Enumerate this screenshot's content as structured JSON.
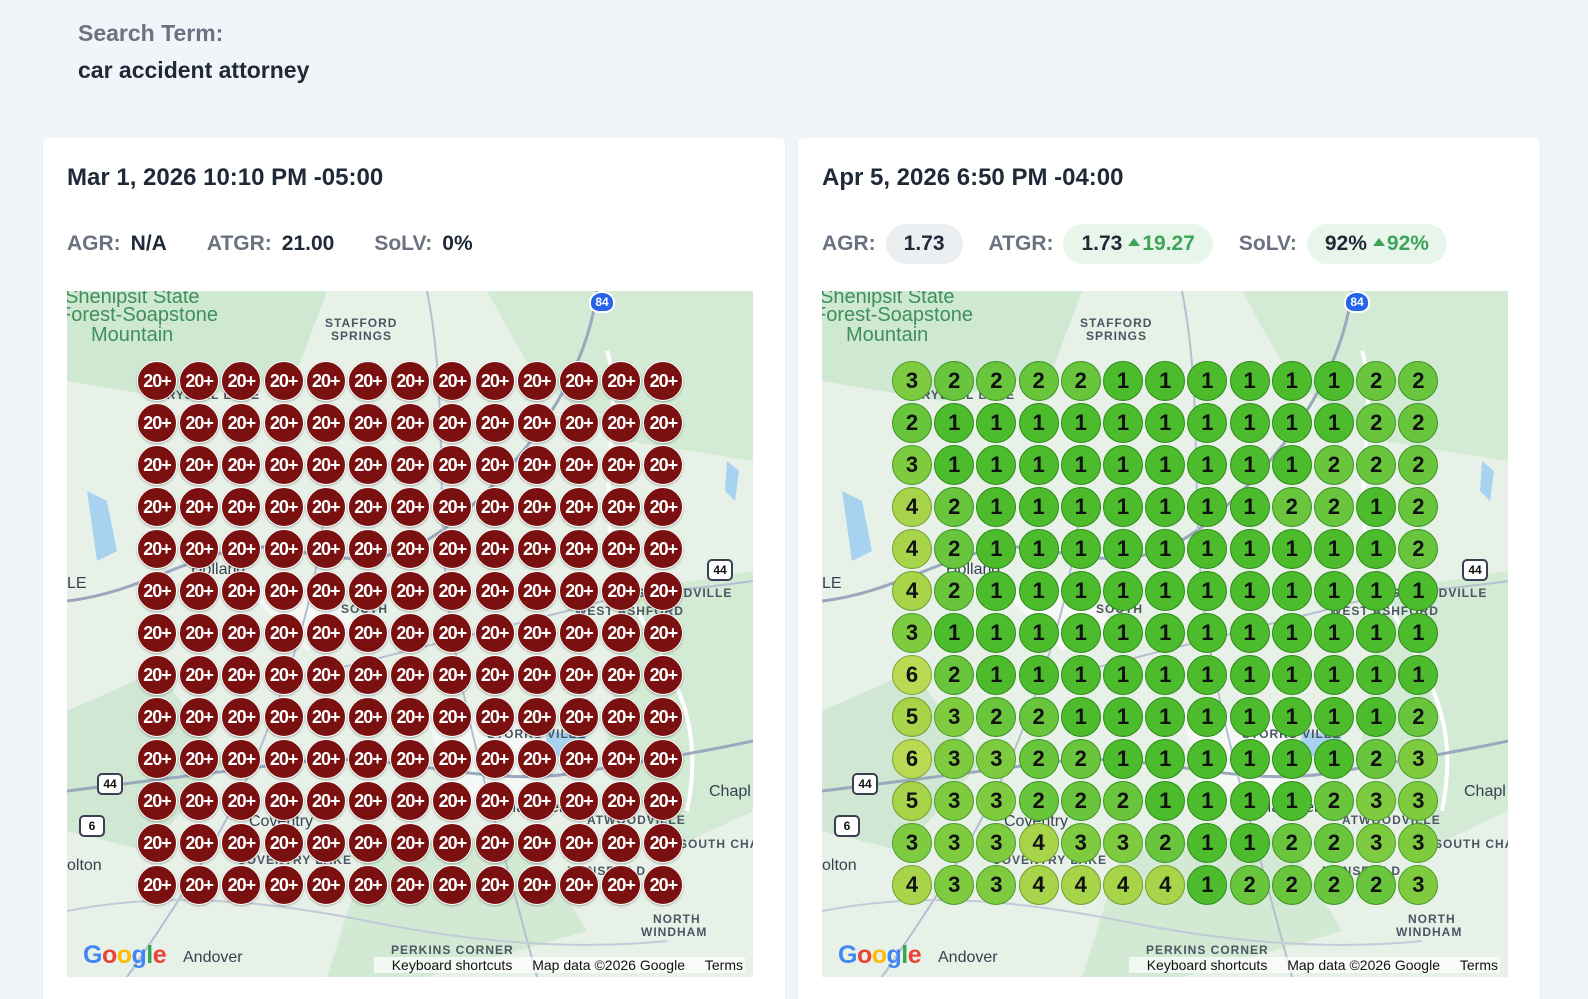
{
  "search": {
    "label": "Search Term:",
    "value": "car accident attorney"
  },
  "scans": [
    {
      "date": "Mar 1, 2026 10:10 PM -05:00",
      "agr_label": "AGR:",
      "agr_value": "N/A",
      "atgr_label": "ATGR:",
      "atgr_value": "21.00",
      "solv_label": "SoLV:",
      "solv_value": "0%",
      "grid": [
        [
          "20+",
          "20+",
          "20+",
          "20+",
          "20+",
          "20+",
          "20+",
          "20+",
          "20+",
          "20+",
          "20+",
          "20+",
          "20+"
        ],
        [
          "20+",
          "20+",
          "20+",
          "20+",
          "20+",
          "20+",
          "20+",
          "20+",
          "20+",
          "20+",
          "20+",
          "20+",
          "20+"
        ],
        [
          "20+",
          "20+",
          "20+",
          "20+",
          "20+",
          "20+",
          "20+",
          "20+",
          "20+",
          "20+",
          "20+",
          "20+",
          "20+"
        ],
        [
          "20+",
          "20+",
          "20+",
          "20+",
          "20+",
          "20+",
          "20+",
          "20+",
          "20+",
          "20+",
          "20+",
          "20+",
          "20+"
        ],
        [
          "20+",
          "20+",
          "20+",
          "20+",
          "20+",
          "20+",
          "20+",
          "20+",
          "20+",
          "20+",
          "20+",
          "20+",
          "20+"
        ],
        [
          "20+",
          "20+",
          "20+",
          "20+",
          "20+",
          "20+",
          "20+",
          "20+",
          "20+",
          "20+",
          "20+",
          "20+",
          "20+"
        ],
        [
          "20+",
          "20+",
          "20+",
          "20+",
          "20+",
          "20+",
          "20+",
          "20+",
          "20+",
          "20+",
          "20+",
          "20+",
          "20+"
        ],
        [
          "20+",
          "20+",
          "20+",
          "20+",
          "20+",
          "20+",
          "20+",
          "20+",
          "20+",
          "20+",
          "20+",
          "20+",
          "20+"
        ],
        [
          "20+",
          "20+",
          "20+",
          "20+",
          "20+",
          "20+",
          "20+",
          "20+",
          "20+",
          "20+",
          "20+",
          "20+",
          "20+"
        ],
        [
          "20+",
          "20+",
          "20+",
          "20+",
          "20+",
          "20+",
          "20+",
          "20+",
          "20+",
          "20+",
          "20+",
          "20+",
          "20+"
        ],
        [
          "20+",
          "20+",
          "20+",
          "20+",
          "20+",
          "20+",
          "20+",
          "20+",
          "20+",
          "20+",
          "20+",
          "20+",
          "20+"
        ],
        [
          "20+",
          "20+",
          "20+",
          "20+",
          "20+",
          "20+",
          "20+",
          "20+",
          "20+",
          "20+",
          "20+",
          "20+",
          "20+"
        ],
        [
          "20+",
          "20+",
          "20+",
          "20+",
          "20+",
          "20+",
          "20+",
          "20+",
          "20+",
          "20+",
          "20+",
          "20+",
          "20+"
        ]
      ]
    },
    {
      "date": "Apr 5, 2026 6:50 PM -04:00",
      "agr_label": "AGR:",
      "agr_value": "1.73",
      "atgr_label": "ATGR:",
      "atgr_value": "1.73",
      "atgr_delta": "19.27",
      "solv_label": "SoLV:",
      "solv_value": "92%",
      "solv_delta": "92%",
      "grid": [
        [
          "3",
          "2",
          "2",
          "2",
          "2",
          "1",
          "1",
          "1",
          "1",
          "1",
          "1",
          "2",
          "2"
        ],
        [
          "2",
          "1",
          "1",
          "1",
          "1",
          "1",
          "1",
          "1",
          "1",
          "1",
          "1",
          "2",
          "2"
        ],
        [
          "3",
          "1",
          "1",
          "1",
          "1",
          "1",
          "1",
          "1",
          "1",
          "1",
          "2",
          "2",
          "2"
        ],
        [
          "4",
          "2",
          "1",
          "1",
          "1",
          "1",
          "1",
          "1",
          "1",
          "2",
          "2",
          "1",
          "2"
        ],
        [
          "4",
          "2",
          "1",
          "1",
          "1",
          "1",
          "1",
          "1",
          "1",
          "1",
          "1",
          "1",
          "2"
        ],
        [
          "4",
          "2",
          "1",
          "1",
          "1",
          "1",
          "1",
          "1",
          "1",
          "1",
          "1",
          "1",
          "1"
        ],
        [
          "3",
          "1",
          "1",
          "1",
          "1",
          "1",
          "1",
          "1",
          "1",
          "1",
          "1",
          "1",
          "1"
        ],
        [
          "6",
          "2",
          "1",
          "1",
          "1",
          "1",
          "1",
          "1",
          "1",
          "1",
          "1",
          "1",
          "1"
        ],
        [
          "5",
          "3",
          "2",
          "2",
          "1",
          "1",
          "1",
          "1",
          "1",
          "1",
          "1",
          "1",
          "2"
        ],
        [
          "6",
          "3",
          "3",
          "2",
          "2",
          "1",
          "1",
          "1",
          "1",
          "1",
          "1",
          "2",
          "3"
        ],
        [
          "5",
          "3",
          "3",
          "2",
          "2",
          "2",
          "1",
          "1",
          "1",
          "1",
          "2",
          "3",
          "3"
        ],
        [
          "3",
          "3",
          "3",
          "4",
          "3",
          "3",
          "2",
          "1",
          "1",
          "2",
          "2",
          "3",
          "3"
        ],
        [
          "4",
          "3",
          "3",
          "4",
          "4",
          "4",
          "4",
          "1",
          "2",
          "2",
          "2",
          "2",
          "3"
        ]
      ]
    }
  ],
  "map": {
    "labels": {
      "forest_line1": "Shenipsit State",
      "forest_line2": "Forest-Soapstone",
      "forest_line3": "Mountain",
      "stafford_1": "STAFFORD",
      "stafford_2": "SPRINGS",
      "crystal_lake": "CRYSTAL LAKE",
      "holland": "Holland",
      "south": "SOUTH",
      "willington": "WILLINGTON",
      "west_ashford": "WEST ASHFORD",
      "ashford_ville": "ASHFORDVILLE",
      "le": "LE",
      "mansfield": "Mansfield",
      "chaplin": "Chapl",
      "coventry": "Coventry",
      "coventry_lake": "COVENTRY LAKE",
      "atwoodville": "ATWOODVILLE",
      "south_chaplin": "SOUTH CHA",
      "bolton": "olton",
      "north_windham_1": "NORTH",
      "north_windham_2": "WINDHAM",
      "perkins_corner": "PERKINS CORNER",
      "andover": "Andover",
      "storrs_ville": "STORRS VILLE",
      "mansfield_center": "MANSFIELD"
    },
    "shields": {
      "i84": "84",
      "us44a": "44",
      "us44b": "44",
      "us6": "6",
      "i44": "44"
    },
    "google": "Google",
    "attribution": {
      "shortcuts": "Keyboard shortcuts",
      "data": "Map data ©2026 Google",
      "terms": "Terms"
    }
  },
  "colors": {
    "red_pin": "#7a1010",
    "green_rank1": "#4cbb2c",
    "delta_green": "#3ea45a"
  }
}
